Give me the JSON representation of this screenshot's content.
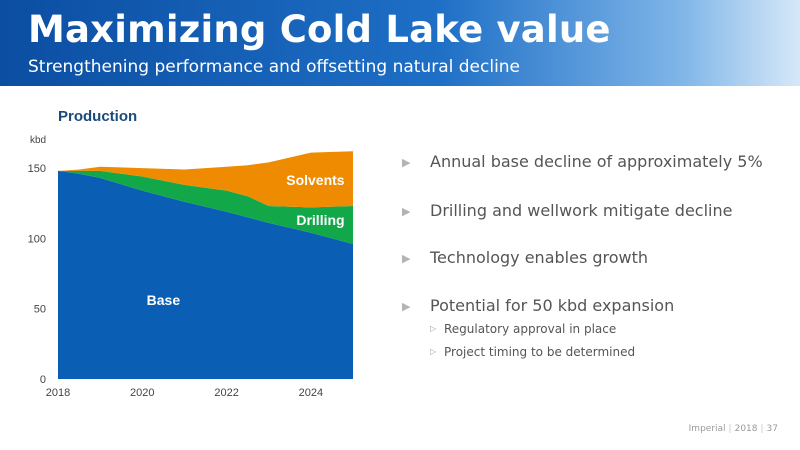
{
  "header": {
    "title": "Maximizing Cold Lake value",
    "subtitle": "Strengthening performance and offsetting natural decline"
  },
  "chart_data": {
    "type": "area",
    "stacked": true,
    "title": "Production",
    "ylabel": "kbd",
    "xlabel": "",
    "x": [
      2018,
      2018.5,
      2019,
      2020,
      2021,
      2022,
      2022.5,
      2023,
      2024,
      2025
    ],
    "ylim": [
      0,
      160
    ],
    "xlim": [
      2018,
      2025
    ],
    "yticks": [
      0,
      50,
      100,
      150
    ],
    "xticks": [
      2018,
      2020,
      2022,
      2024
    ],
    "grid": false,
    "legend": "inline labels",
    "series": [
      {
        "name": "Base",
        "color": "#0a5fb4",
        "values": [
          148,
          146,
          143,
          134,
          126,
          119,
          115,
          111,
          104,
          96
        ]
      },
      {
        "name": "Drilling",
        "color": "#12a84a",
        "values": [
          0,
          2,
          5,
          10,
          12,
          15,
          15,
          12,
          18,
          27
        ]
      },
      {
        "name": "Solvents",
        "color": "#ee8b00",
        "values": [
          0,
          1,
          3,
          6,
          11,
          17,
          22,
          31,
          39,
          39
        ]
      }
    ]
  },
  "bullets": [
    "Annual base decline of approximately 5%",
    "Drilling and wellwork mitigate decline",
    "Technology enables growth",
    "Potential for 50 kbd expansion"
  ],
  "sub_bullets": [
    "Regulatory approval in place",
    "Project timing to be determined"
  ],
  "footer": {
    "company": "Imperial",
    "year": "2018",
    "page": "37"
  }
}
